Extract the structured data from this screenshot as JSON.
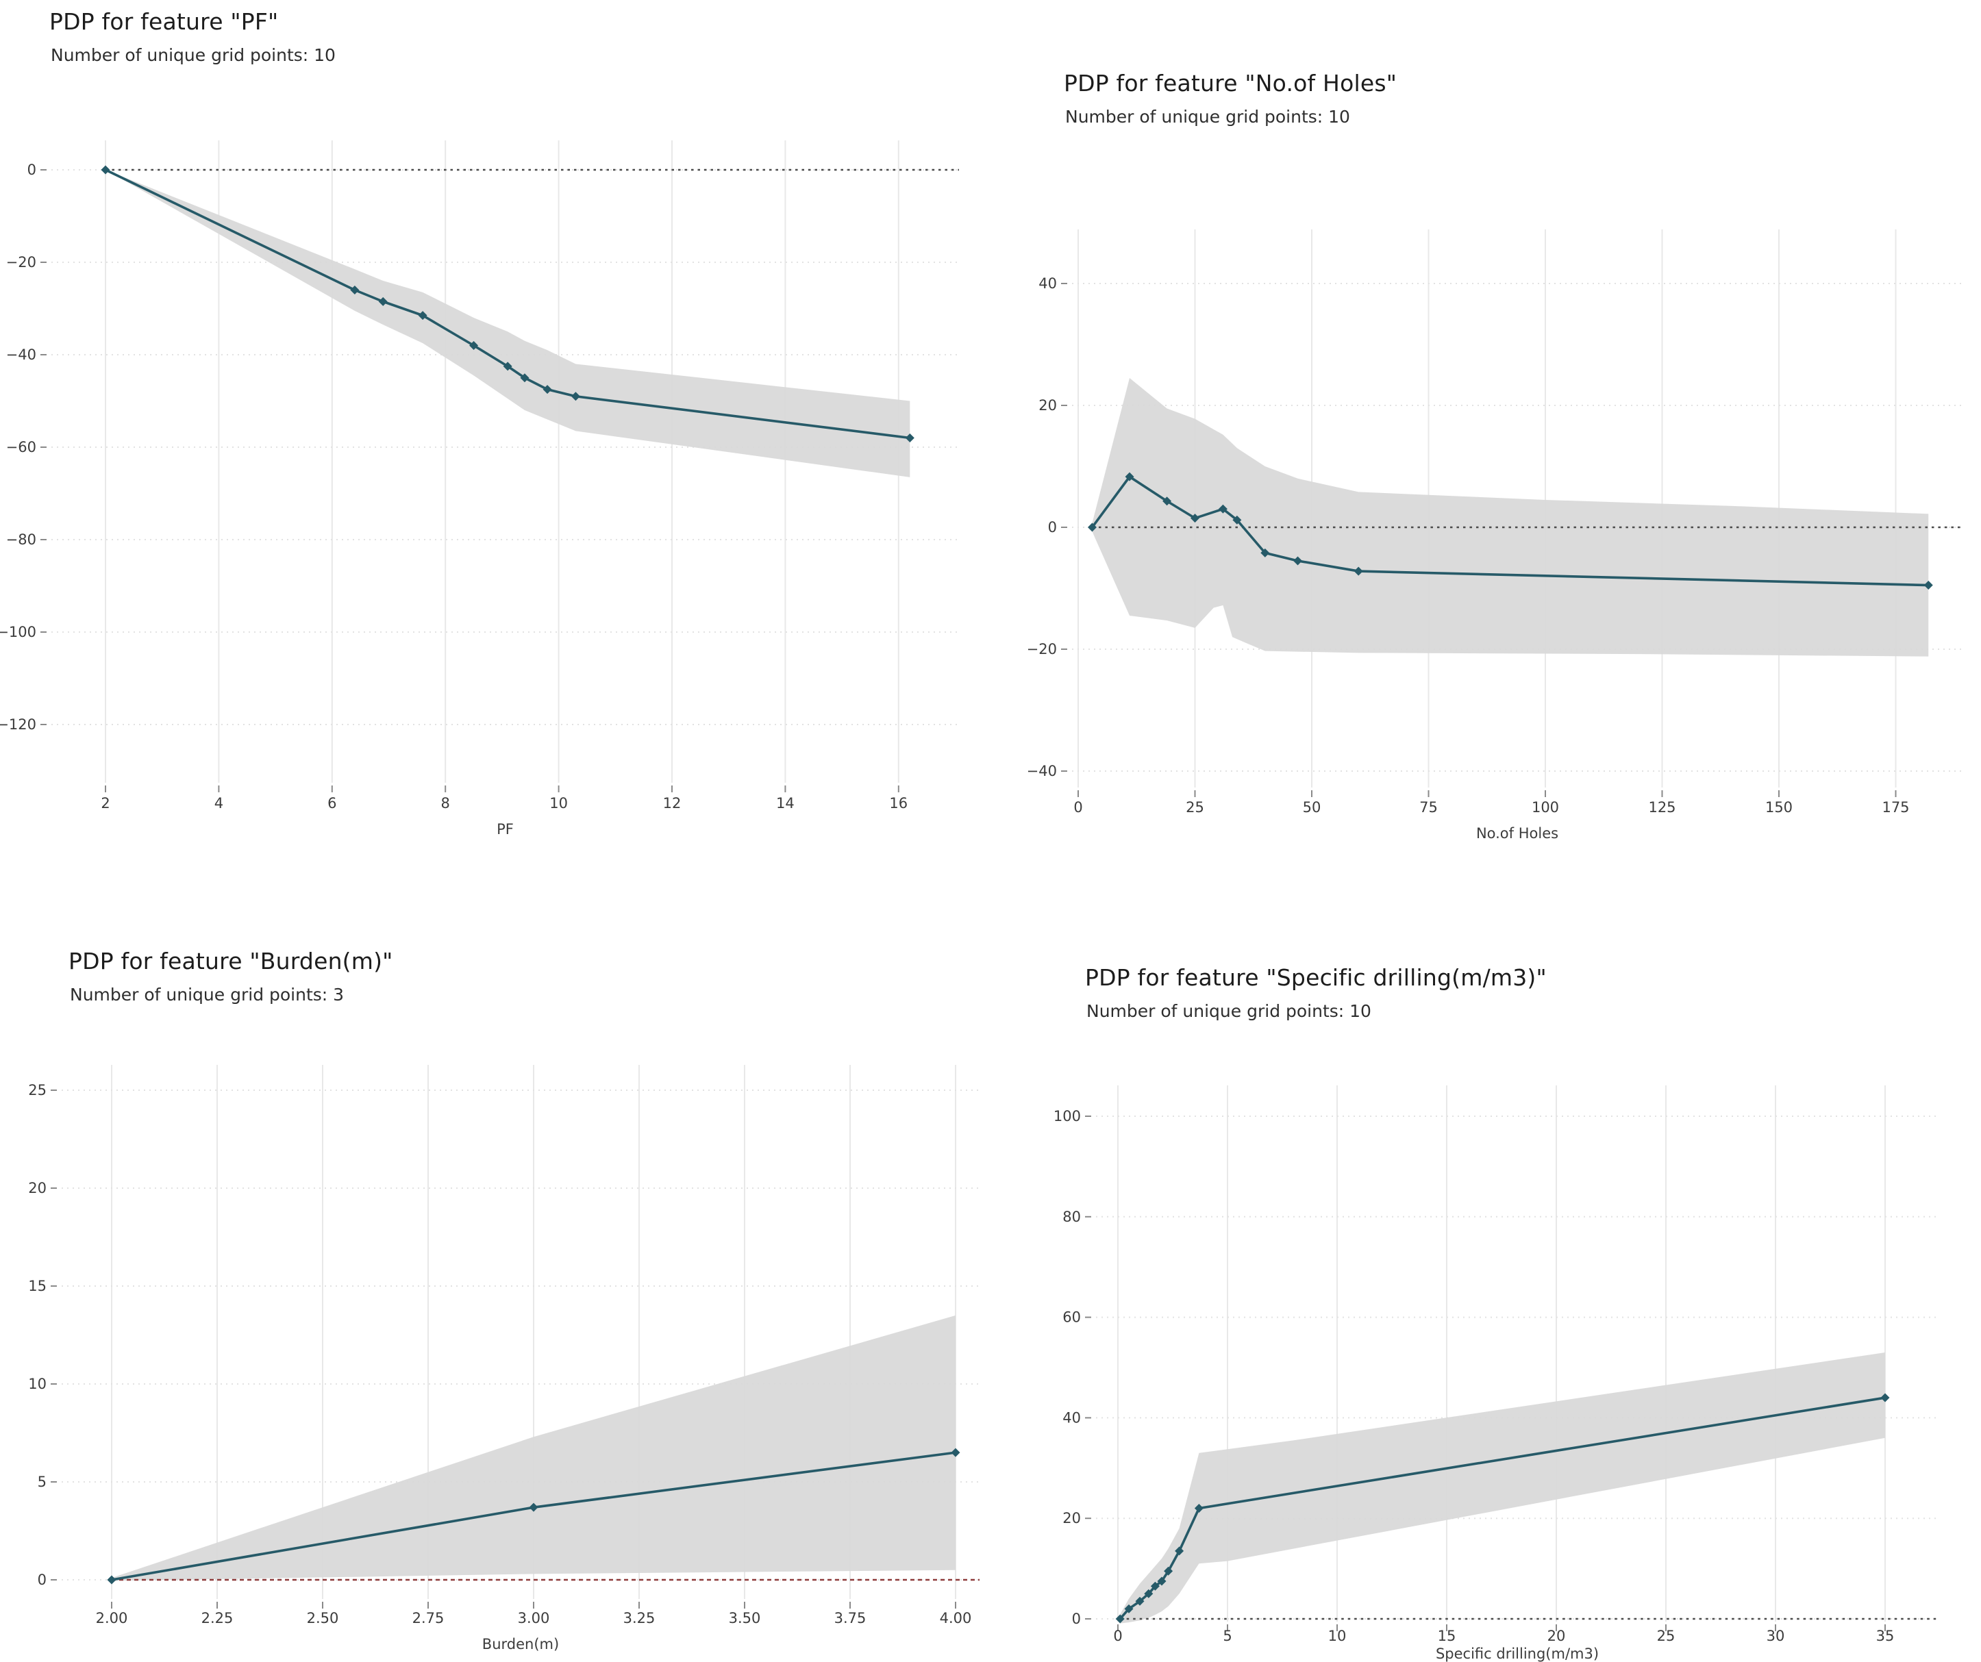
{
  "style": {
    "line_color": "#265a68",
    "band_color": "#d8d8d8",
    "grid_vertical_color": "#e8e8e8",
    "grid_horizontal_color": "#e2e2e2",
    "tick_color": "#8a8a8a",
    "text_color": "#3c3c3c",
    "background_color": "#ffffff"
  },
  "chart_data": [
    {
      "type": "line",
      "title": "PDP for feature \"PF\"",
      "subtitle": "Number of unique grid points: 10",
      "xlabel": "PF",
      "ylabel": "",
      "legend_position": "none",
      "grid": true,
      "xlim": [
        1.05,
        17.1
      ],
      "ylim": [
        -132,
        6
      ],
      "x": [
        2.0,
        6.4,
        6.9,
        7.6,
        8.5,
        9.1,
        9.4,
        9.8,
        10.3,
        16.2
      ],
      "y": [
        0,
        -26,
        -28.5,
        -31.5,
        -38,
        -42.5,
        -45,
        -47.5,
        -49,
        -58
      ],
      "band_upper": [
        [
          2.0,
          0
        ],
        [
          6.4,
          -21.5
        ],
        [
          6.9,
          -24
        ],
        [
          7.6,
          -26.5
        ],
        [
          8.5,
          -32
        ],
        [
          9.1,
          -35
        ],
        [
          9.4,
          -37
        ],
        [
          9.8,
          -39
        ],
        [
          10.3,
          -42
        ],
        [
          16.2,
          -50
        ]
      ],
      "band_lower": [
        [
          2.0,
          0
        ],
        [
          6.4,
          -30.5
        ],
        [
          6.9,
          -33.5
        ],
        [
          7.6,
          -37.5
        ],
        [
          8.5,
          -44.5
        ],
        [
          9.1,
          -49.5
        ],
        [
          9.4,
          -52
        ],
        [
          9.8,
          -54
        ],
        [
          10.3,
          -56.5
        ],
        [
          16.2,
          -66.5
        ]
      ],
      "xticks": [
        2,
        4,
        6,
        8,
        10,
        12,
        14,
        16
      ],
      "xtick_labels": [
        "2",
        "4",
        "6",
        "8",
        "10",
        "12",
        "14",
        "16"
      ],
      "yticks": [
        0,
        -20,
        -40,
        -60,
        -80,
        -100,
        -120
      ],
      "ytick_labels": [
        "0",
        "−20",
        "−40",
        "−60",
        "−80",
        "−100",
        "−120"
      ],
      "zero_line": {
        "y": 0,
        "style": "dotted",
        "color": "#4a4a4a"
      }
    },
    {
      "type": "line",
      "title": "PDP for feature \"No.of Holes\"",
      "subtitle": "Number of unique grid points: 10",
      "xlabel": "No.of Holes",
      "ylabel": "",
      "legend_position": "none",
      "grid": true,
      "xlim": [
        -1.5,
        190
      ],
      "ylim": [
        -43,
        48
      ],
      "x": [
        3,
        11,
        19,
        25,
        31,
        34,
        40,
        47,
        60,
        182
      ],
      "y": [
        0,
        8.3,
        4.3,
        1.5,
        3.0,
        1.2,
        -4.2,
        -5.5,
        -7.2,
        -9.5
      ],
      "band_upper": [
        [
          3,
          0.7
        ],
        [
          11,
          24.5
        ],
        [
          19,
          19.5
        ],
        [
          25,
          17.8
        ],
        [
          31,
          15.2
        ],
        [
          34,
          13
        ],
        [
          36,
          12
        ],
        [
          40,
          10
        ],
        [
          47,
          8
        ],
        [
          60,
          5.8
        ],
        [
          100,
          4.5
        ],
        [
          140,
          3.5
        ],
        [
          182,
          2.2
        ]
      ],
      "band_lower": [
        [
          3,
          -0.7
        ],
        [
          11,
          -14.5
        ],
        [
          19,
          -15.3
        ],
        [
          25,
          -16.5
        ],
        [
          29,
          -13.2
        ],
        [
          31,
          -12.8
        ],
        [
          33,
          -18
        ],
        [
          36,
          -19
        ],
        [
          40,
          -20.3
        ],
        [
          60,
          -20.6
        ],
        [
          120,
          -20.8
        ],
        [
          182,
          -21.2
        ]
      ],
      "xticks": [
        0,
        25,
        50,
        75,
        100,
        125,
        150,
        175
      ],
      "xtick_labels": [
        "0",
        "25",
        "50",
        "75",
        "100",
        "125",
        "150",
        "175"
      ],
      "yticks": [
        40,
        20,
        0,
        -20,
        -40
      ],
      "ytick_labels": [
        "40",
        "20",
        "0",
        "−20",
        "−40"
      ],
      "zero_line": {
        "y": 0,
        "style": "dotted",
        "color": "#4a4a4a"
      }
    },
    {
      "type": "line",
      "title": "PDP for feature \"Burden(m)\"",
      "subtitle": "Number of unique grid points: 3",
      "xlabel": "Burden(m)",
      "ylabel": "",
      "legend_position": "none",
      "grid": true,
      "xlim": [
        1.88,
        4.06
      ],
      "ylim": [
        -1,
        26.3
      ],
      "x": [
        2.0,
        3.0,
        4.0
      ],
      "y": [
        0,
        3.7,
        6.5
      ],
      "band_upper": [
        [
          2.0,
          0.1
        ],
        [
          3.0,
          7.3
        ],
        [
          4.0,
          13.5
        ]
      ],
      "band_lower": [
        [
          2.0,
          -0.05
        ],
        [
          3.0,
          0.3
        ],
        [
          4.0,
          0.5
        ]
      ],
      "xticks": [
        2.0,
        2.25,
        2.5,
        2.75,
        3.0,
        3.25,
        3.5,
        3.75,
        4.0
      ],
      "xtick_labels": [
        "2.00",
        "2.25",
        "2.50",
        "2.75",
        "3.00",
        "3.25",
        "3.50",
        "3.75",
        "4.00"
      ],
      "yticks": [
        25,
        20,
        15,
        10,
        5,
        0
      ],
      "ytick_labels": [
        "25",
        "20",
        "15",
        "10",
        "5",
        "0"
      ],
      "zero_line": {
        "y": 0,
        "style": "dashed",
        "color": "#8e3b3b"
      }
    },
    {
      "type": "line",
      "title": "PDP for feature \"Specific drilling(m/m3)\"",
      "subtitle": "Number of unique grid points: 10",
      "xlabel": "Specific drilling(m/m3)",
      "ylabel": "",
      "legend_position": "none",
      "grid": true,
      "xlim": [
        -1,
        37.5
      ],
      "ylim": [
        -2,
        106
      ],
      "x": [
        0.1,
        0.5,
        1.0,
        1.4,
        1.7,
        2.0,
        2.3,
        2.8,
        3.7,
        35
      ],
      "y": [
        0,
        2,
        3.5,
        5,
        6.5,
        7.5,
        9.5,
        13.5,
        22,
        44
      ],
      "band_upper": [
        [
          0.1,
          0.9
        ],
        [
          0.5,
          4
        ],
        [
          1.0,
          7
        ],
        [
          1.4,
          9
        ],
        [
          1.7,
          10.5
        ],
        [
          2.0,
          12
        ],
        [
          2.3,
          14
        ],
        [
          2.8,
          18
        ],
        [
          3.7,
          33
        ],
        [
          8,
          35.5
        ],
        [
          35,
          53
        ]
      ],
      "band_lower": [
        [
          0.1,
          -0.9
        ],
        [
          0.5,
          -0.7
        ],
        [
          1.0,
          -0.3
        ],
        [
          1.4,
          0.2
        ],
        [
          1.7,
          0.8
        ],
        [
          2.0,
          1.5
        ],
        [
          2.3,
          2.5
        ],
        [
          2.8,
          5
        ],
        [
          3.7,
          11
        ],
        [
          5,
          11.5
        ],
        [
          35,
          36
        ]
      ],
      "xticks": [
        0,
        5,
        10,
        15,
        20,
        25,
        30,
        35
      ],
      "xtick_labels": [
        "0",
        "5",
        "10",
        "15",
        "20",
        "25",
        "30",
        "35"
      ],
      "yticks": [
        100,
        80,
        60,
        40,
        20,
        0
      ],
      "ytick_labels": [
        "100",
        "80",
        "60",
        "40",
        "20",
        "0"
      ],
      "zero_line": {
        "y": 0,
        "style": "dotted",
        "color": "#4a4a4a"
      }
    }
  ]
}
